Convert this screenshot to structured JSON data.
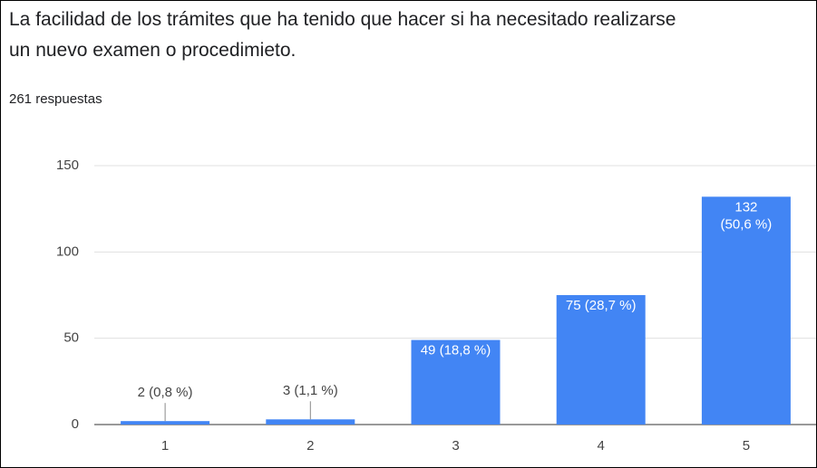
{
  "chart_data": {
    "type": "bar",
    "title": "La facilidad de los trámites que ha tenido que hacer si ha necesitado realizarse un nuevo examen o procedimieto.",
    "subtitle": "261 respuestas",
    "categories": [
      "1",
      "2",
      "3",
      "4",
      "5"
    ],
    "values": [
      2,
      3,
      49,
      75,
      132
    ],
    "value_labels": [
      "2 (0,8 %)",
      "3 (1,1 %)",
      "49 (18,8 %)",
      "75 (28,7 %)",
      "132 (50,6 %)"
    ],
    "color": "#4285f4",
    "ylim": [
      0,
      150
    ],
    "yticks": [
      0,
      50,
      100,
      150
    ],
    "grid": true
  }
}
